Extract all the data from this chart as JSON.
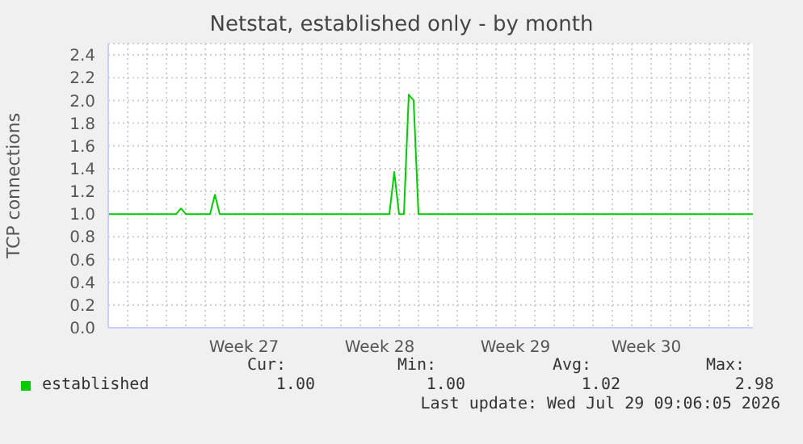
{
  "chart_data": {
    "type": "line",
    "title": "Netstat, established only - by month",
    "ylabel": "TCP connections",
    "categories": [
      null,
      null,
      null,
      null,
      null,
      null,
      null,
      null,
      null,
      null,
      null,
      null,
      null,
      null,
      null,
      null,
      null,
      null,
      null,
      null,
      null,
      null,
      null,
      null,
      null,
      null,
      null,
      null,
      "Week 27",
      null,
      null,
      null,
      null,
      null,
      null,
      null,
      null,
      null,
      null,
      null,
      null,
      null,
      null,
      null,
      null,
      null,
      null,
      null,
      null,
      null,
      null,
      null,
      null,
      null,
      null,
      null,
      "Week 28",
      null,
      null,
      null,
      null,
      null,
      null,
      null,
      null,
      null,
      null,
      null,
      null,
      null,
      null,
      null,
      null,
      null,
      null,
      null,
      null,
      null,
      null,
      null,
      null,
      null,
      null,
      null,
      "Week 29",
      null,
      null,
      null,
      null,
      null,
      null,
      null,
      null,
      null,
      null,
      null,
      null,
      null,
      null,
      null,
      null,
      null,
      null,
      null,
      null,
      null,
      null,
      null,
      null,
      null,
      null,
      "Week 30",
      null,
      null,
      null,
      null,
      null,
      null,
      null,
      null,
      null,
      null,
      null,
      null,
      null,
      null,
      null,
      null,
      null,
      null,
      null,
      null,
      null,
      null
    ],
    "series": [
      {
        "name": "established",
        "color": "#00cc00",
        "values": [
          1,
          1,
          1,
          1,
          1,
          1,
          1,
          1,
          1,
          1,
          1,
          1,
          1,
          1,
          1,
          1.05,
          1,
          1,
          1,
          1,
          1,
          1,
          1.17,
          1,
          1,
          1,
          1,
          1,
          1,
          1,
          1,
          1,
          1,
          1,
          1,
          1,
          1,
          1,
          1,
          1,
          1,
          1,
          1,
          1,
          1,
          1,
          1,
          1,
          1,
          1,
          1,
          1,
          1,
          1,
          1,
          1,
          1,
          1,
          1,
          1.37,
          1,
          1,
          2.05,
          2.0,
          1,
          1,
          1,
          1,
          1,
          1,
          1,
          1,
          1,
          1,
          1,
          1,
          1,
          1,
          1,
          1,
          1,
          1,
          1,
          1,
          1,
          1,
          1,
          1,
          1,
          1,
          1,
          1,
          1,
          1,
          1,
          1,
          1,
          1,
          1,
          1,
          1,
          1,
          1,
          1,
          1,
          1,
          1,
          1,
          1,
          1,
          1,
          1,
          1,
          1,
          1,
          1,
          1,
          1,
          1,
          1,
          1,
          1,
          1,
          1,
          1,
          1,
          1,
          1,
          1,
          1,
          1,
          1,
          1,
          1
        ]
      }
    ],
    "ylim": [
      0,
      2.5
    ],
    "yticks": [
      {
        "value": 0,
        "label": "0.0"
      },
      0.2,
      0.4,
      0.6,
      0.8,
      {
        "value": 1,
        "label": "1.0"
      },
      1.2,
      1.4,
      1.6,
      1.8,
      {
        "value": 2,
        "label": "2.0"
      },
      2.2,
      2.4
    ],
    "grid": true,
    "legend": "bottom",
    "marker": "none",
    "line_style": "solid",
    "annotations": [
      "Cur:",
      "Min:",
      "Avg:",
      "Max:",
      "1.00",
      "1.00",
      "1.02",
      "2.98",
      "Last update: Wed Jul 29 09:06:05 2026"
    ]
  }
}
